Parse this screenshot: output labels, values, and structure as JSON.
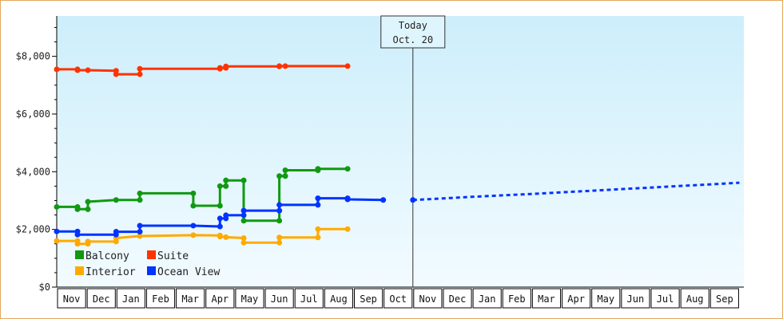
{
  "chart_data": {
    "type": "line",
    "title": "",
    "xlabel": "",
    "ylabel": "",
    "ylim": [
      0,
      9400
    ],
    "y_ticks": [
      {
        "value": 0,
        "label": "$0"
      },
      {
        "value": 2000,
        "label": "$2,000"
      },
      {
        "value": 4000,
        "label": "$4,000"
      },
      {
        "value": 6000,
        "label": "$6,000"
      },
      {
        "value": 8000,
        "label": "$8,000"
      }
    ],
    "x_month_labels": [
      "Nov",
      "Dec",
      "Jan",
      "Feb",
      "Mar",
      "Apr",
      "May",
      "Jun",
      "Jul",
      "Aug",
      "Sep",
      "Oct",
      "Nov",
      "Dec",
      "Jan",
      "Feb",
      "Mar",
      "Apr",
      "May",
      "Jun",
      "Jul",
      "Aug",
      "Sep"
    ],
    "today_marker": {
      "line1": "Today",
      "line2": "Oct. 20",
      "x_month": 12.0
    },
    "legend_position": "bottom-left",
    "series": [
      {
        "name": "Balcony",
        "color": "#119911",
        "points": [
          [
            0.0,
            2780
          ],
          [
            0.7,
            2780
          ],
          [
            0.7,
            2700
          ],
          [
            1.05,
            2700
          ],
          [
            1.05,
            2960
          ],
          [
            2.0,
            3020
          ],
          [
            2.8,
            3020
          ],
          [
            2.8,
            3250
          ],
          [
            4.6,
            3250
          ],
          [
            4.6,
            2820
          ],
          [
            5.5,
            2820
          ],
          [
            5.5,
            3500
          ],
          [
            5.7,
            3500
          ],
          [
            5.7,
            3700
          ],
          [
            6.3,
            3700
          ],
          [
            6.3,
            2300
          ],
          [
            7.5,
            2300
          ],
          [
            7.5,
            3850
          ],
          [
            7.7,
            3850
          ],
          [
            7.7,
            4050
          ],
          [
            8.8,
            4050
          ],
          [
            8.8,
            4100
          ],
          [
            9.8,
            4100
          ]
        ]
      },
      {
        "name": "Suite",
        "color": "#ff3300",
        "points": [
          [
            0.0,
            7550
          ],
          [
            0.7,
            7550
          ],
          [
            0.7,
            7520
          ],
          [
            1.05,
            7520
          ],
          [
            2.0,
            7500
          ],
          [
            2.0,
            7380
          ],
          [
            2.8,
            7380
          ],
          [
            2.8,
            7570
          ],
          [
            5.5,
            7570
          ],
          [
            5.5,
            7600
          ],
          [
            5.7,
            7600
          ],
          [
            5.7,
            7650
          ],
          [
            7.5,
            7650
          ],
          [
            7.5,
            7660
          ],
          [
            7.7,
            7660
          ],
          [
            9.8,
            7660
          ]
        ]
      },
      {
        "name": "Interior",
        "color": "#ffaa00",
        "points": [
          [
            0.0,
            1600
          ],
          [
            0.7,
            1600
          ],
          [
            0.7,
            1500
          ],
          [
            1.05,
            1500
          ],
          [
            1.05,
            1580
          ],
          [
            2.0,
            1580
          ],
          [
            2.0,
            1700
          ],
          [
            2.8,
            1770
          ],
          [
            4.6,
            1800
          ],
          [
            5.5,
            1790
          ],
          [
            5.5,
            1750
          ],
          [
            5.7,
            1730
          ],
          [
            6.3,
            1700
          ],
          [
            6.3,
            1540
          ],
          [
            7.5,
            1540
          ],
          [
            7.5,
            1720
          ],
          [
            8.8,
            1720
          ],
          [
            8.8,
            2010
          ],
          [
            9.8,
            2010
          ]
        ]
      },
      {
        "name": "Ocean View",
        "color": "#0033ff",
        "points": [
          [
            0.0,
            1930
          ],
          [
            0.7,
            1930
          ],
          [
            0.7,
            1820
          ],
          [
            2.0,
            1820
          ],
          [
            2.0,
            1920
          ],
          [
            2.8,
            1920
          ],
          [
            2.8,
            2130
          ],
          [
            4.6,
            2130
          ],
          [
            5.5,
            2100
          ],
          [
            5.5,
            2380
          ],
          [
            5.7,
            2380
          ],
          [
            5.7,
            2490
          ],
          [
            6.3,
            2490
          ],
          [
            6.3,
            2650
          ],
          [
            7.5,
            2650
          ],
          [
            7.5,
            2850
          ],
          [
            8.8,
            2850
          ],
          [
            8.8,
            3080
          ],
          [
            9.8,
            3080
          ],
          [
            9.8,
            3040
          ],
          [
            11.0,
            3020
          ]
        ]
      }
    ],
    "forecast_series": {
      "color": "#0033ff",
      "points": [
        [
          12.0,
          3020
        ],
        [
          14.0,
          3130
        ],
        [
          16.0,
          3230
        ],
        [
          18.0,
          3340
        ],
        [
          20.0,
          3450
        ],
        [
          22.0,
          3560
        ],
        [
          23.0,
          3620
        ]
      ]
    }
  }
}
